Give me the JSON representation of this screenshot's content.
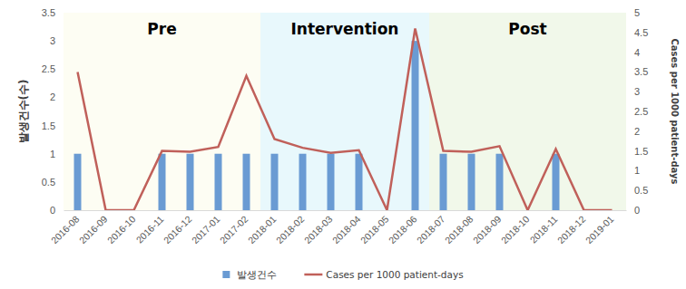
{
  "chart_data": {
    "type": "bar",
    "categories": [
      "2016-08",
      "2016-09",
      "2016-10",
      "2016-11",
      "2016-12",
      "2017-01",
      "2017-02",
      "2018-01",
      "2018-02",
      "2018-03",
      "2018-04",
      "2018-05",
      "2018-06",
      "2018-07",
      "2018-08",
      "2018-09",
      "2018-10",
      "2018-11",
      "2018-12",
      "2019-01"
    ],
    "series": [
      {
        "name": "발생건수",
        "type": "bar",
        "color": "#6a9bd3",
        "values": [
          1,
          0,
          0,
          1,
          1,
          1,
          1,
          1,
          1,
          1,
          1,
          0,
          3,
          1,
          1,
          1,
          0,
          1,
          0,
          0
        ]
      },
      {
        "name": "Cases per 1000 patient-days",
        "type": "line",
        "axis": "y2",
        "color": "#c0605a",
        "values": [
          3.5,
          0,
          0,
          1.5,
          1.48,
          1.6,
          3.4,
          1.8,
          1.58,
          1.45,
          1.52,
          0,
          4.6,
          1.5,
          1.48,
          1.62,
          0,
          1.55,
          0,
          0
        ]
      }
    ],
    "y_label": "발생건수(수)",
    "y2_label": "Cases per 1000 patient-days",
    "ylim": [
      0,
      3.5
    ],
    "yticks": [
      0,
      0.5,
      1,
      1.5,
      2,
      2.5,
      3,
      3.5
    ],
    "y2lim": [
      0,
      5
    ],
    "y2ticks": [
      0,
      0.5,
      1,
      1.5,
      2,
      2.5,
      3,
      3.5,
      4,
      4.5,
      5
    ],
    "legend": "bottom",
    "annotations": [
      {
        "text": "Pre",
        "from": "2016-08",
        "to": "2017-02"
      },
      {
        "text": "Intervention",
        "from": "2018-01",
        "to": "2018-06"
      },
      {
        "text": "Post",
        "from": "2018-07",
        "to": "2019-01"
      }
    ]
  }
}
